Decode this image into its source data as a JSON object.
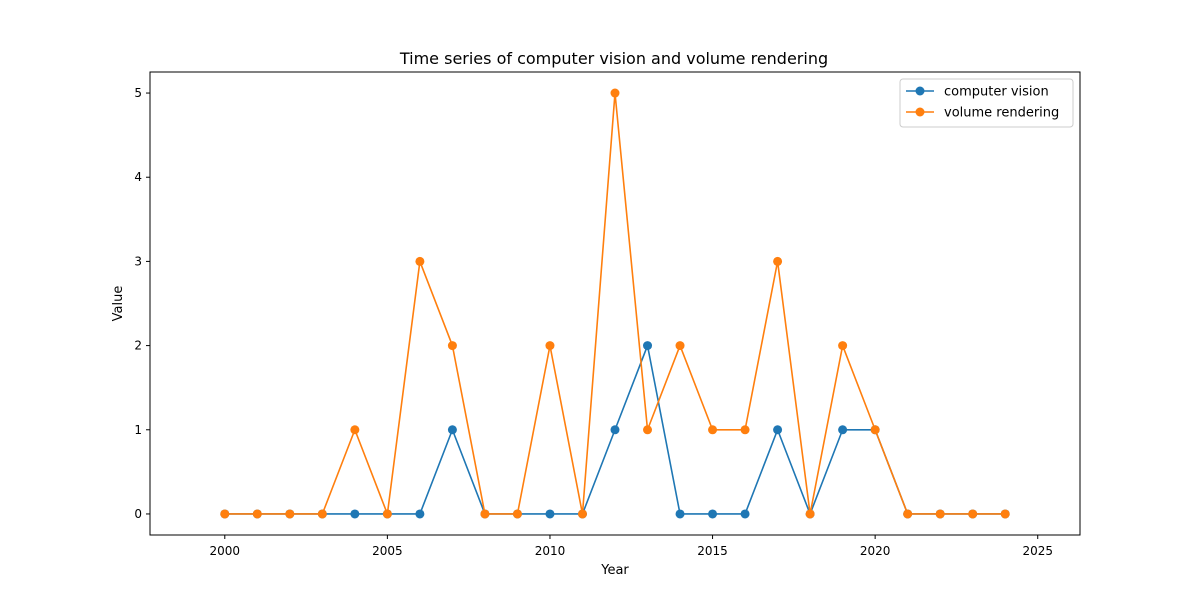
{
  "chart_data": {
    "type": "line",
    "title": "Time series of computer vision and volume rendering",
    "xlabel": "Year",
    "ylabel": "Value",
    "xlim": [
      1997.7,
      2026.3
    ],
    "ylim": [
      -0.25,
      5.25
    ],
    "x_ticks": [
      2000,
      2005,
      2010,
      2015,
      2020,
      2025
    ],
    "y_ticks": [
      0,
      1,
      2,
      3,
      4,
      5
    ],
    "grid": false,
    "legend_position": "top-right",
    "x": [
      2000,
      2001,
      2002,
      2003,
      2004,
      2005,
      2006,
      2007,
      2008,
      2009,
      2010,
      2011,
      2012,
      2013,
      2014,
      2015,
      2016,
      2017,
      2018,
      2019,
      2020,
      2021,
      2022,
      2023,
      2024
    ],
    "series": [
      {
        "name": "computer vision",
        "color": "#1f77b4",
        "values": [
          0,
          0,
          0,
          0,
          0,
          0,
          0,
          1,
          0,
          0,
          0,
          0,
          1,
          2,
          0,
          0,
          0,
          1,
          0,
          1,
          1,
          0,
          0,
          0,
          0
        ]
      },
      {
        "name": "volume rendering",
        "color": "#ff7f0e",
        "values": [
          0,
          0,
          0,
          0,
          1,
          0,
          3,
          2,
          0,
          0,
          2,
          0,
          5,
          1,
          2,
          1,
          1,
          3,
          0,
          2,
          1,
          0,
          0,
          0,
          0
        ]
      }
    ]
  }
}
